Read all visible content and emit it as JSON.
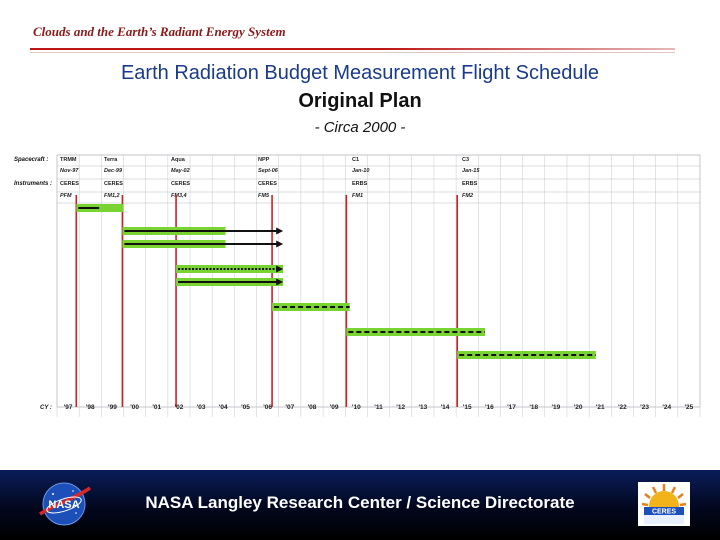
{
  "header": {
    "banner": "Clouds and the Earth’s Radiant Energy System"
  },
  "slide": {
    "title": "Earth Radiation Budget Measurement Flight Schedule",
    "subtitle": "Original Plan",
    "note": "- Circa 2000 -"
  },
  "schedule": {
    "labels": {
      "spacecraft": "Spacecraft :",
      "instruments": "Instruments :",
      "cy": "CY :"
    },
    "missions": [
      {
        "spacecraft": "TRMM",
        "date": "Nov-97",
        "instrument": "CERES",
        "model": "PFM"
      },
      {
        "spacecraft": "Terra",
        "date": "Dec-99",
        "instrument": "CERES",
        "model": "FM1,2"
      },
      {
        "spacecraft": "Aqua",
        "date": "May-02",
        "instrument": "CERES",
        "model": "FM3,4"
      },
      {
        "spacecraft": "NPP",
        "date": "Sept-06",
        "instrument": "CERES",
        "model": "FM5"
      },
      {
        "spacecraft": "C1",
        "date": "Jan-10",
        "instrument": "ERBS",
        "model": "FM1"
      },
      {
        "spacecraft": "C3",
        "date": "Jan-15",
        "instrument": "ERBS",
        "model": "FM2"
      }
    ],
    "years": [
      "'97",
      "'98",
      "'99",
      "'00",
      "'01",
      "'02",
      "'03",
      "'04",
      "'05",
      "'06",
      "'07",
      "'08",
      "'09",
      "'10",
      "'11",
      "'12",
      "'13",
      "'14",
      "'15",
      "'16",
      "'17",
      "'18",
      "'19",
      "'20",
      "'21",
      "'22",
      "'23",
      "'24",
      "'25"
    ],
    "colors": {
      "bar": "#79d431",
      "milestone": "#cc2222",
      "line": "#111111"
    }
  },
  "footer": {
    "text": "NASA Langley Research Center / Science Directorate",
    "left_logo": "nasa-logo",
    "right_logo": "ceres-logo"
  }
}
